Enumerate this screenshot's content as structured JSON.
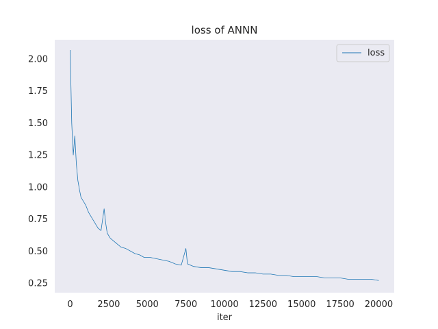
{
  "chart_data": {
    "type": "line",
    "title": "loss of ANNN",
    "xlabel": "iter",
    "ylabel": "",
    "xlim": [
      -1000,
      21000
    ],
    "ylim": [
      0.175,
      2.15
    ],
    "xticks": [
      0,
      2500,
      5000,
      7500,
      10000,
      12500,
      15000,
      17500,
      20000
    ],
    "yticks": [
      0.25,
      0.5,
      0.75,
      1.0,
      1.25,
      1.5,
      1.75,
      2.0
    ],
    "ytick_labels": [
      "0.25",
      "0.50",
      "0.75",
      "1.00",
      "1.25",
      "1.50",
      "1.75",
      "2.00"
    ],
    "grid": false,
    "legend_position": "top-right",
    "series": [
      {
        "name": "loss",
        "color": "#1f77b4",
        "x": [
          0,
          100,
          200,
          300,
          400,
          500,
          600,
          700,
          800,
          900,
          1000,
          1200,
          1400,
          1600,
          1800,
          2000,
          2200,
          2300,
          2400,
          2600,
          2800,
          3000,
          3300,
          3600,
          3900,
          4200,
          4500,
          4800,
          5200,
          5600,
          6000,
          6400,
          6800,
          7200,
          7500,
          7600,
          8000,
          8500,
          9000,
          9500,
          10000,
          10500,
          11000,
          11500,
          12000,
          12500,
          13000,
          13500,
          14000,
          14500,
          15000,
          15500,
          16000,
          16500,
          17000,
          17500,
          18000,
          18500,
          19000,
          19500,
          20000
        ],
        "y": [
          2.07,
          1.5,
          1.25,
          1.4,
          1.18,
          1.05,
          0.98,
          0.92,
          0.9,
          0.88,
          0.86,
          0.8,
          0.76,
          0.72,
          0.68,
          0.66,
          0.83,
          0.72,
          0.64,
          0.6,
          0.58,
          0.56,
          0.53,
          0.52,
          0.5,
          0.48,
          0.47,
          0.45,
          0.45,
          0.44,
          0.43,
          0.42,
          0.4,
          0.39,
          0.52,
          0.4,
          0.38,
          0.37,
          0.37,
          0.36,
          0.35,
          0.34,
          0.34,
          0.33,
          0.33,
          0.32,
          0.32,
          0.31,
          0.31,
          0.3,
          0.3,
          0.3,
          0.3,
          0.29,
          0.29,
          0.29,
          0.28,
          0.28,
          0.28,
          0.28,
          0.27
        ]
      }
    ]
  }
}
